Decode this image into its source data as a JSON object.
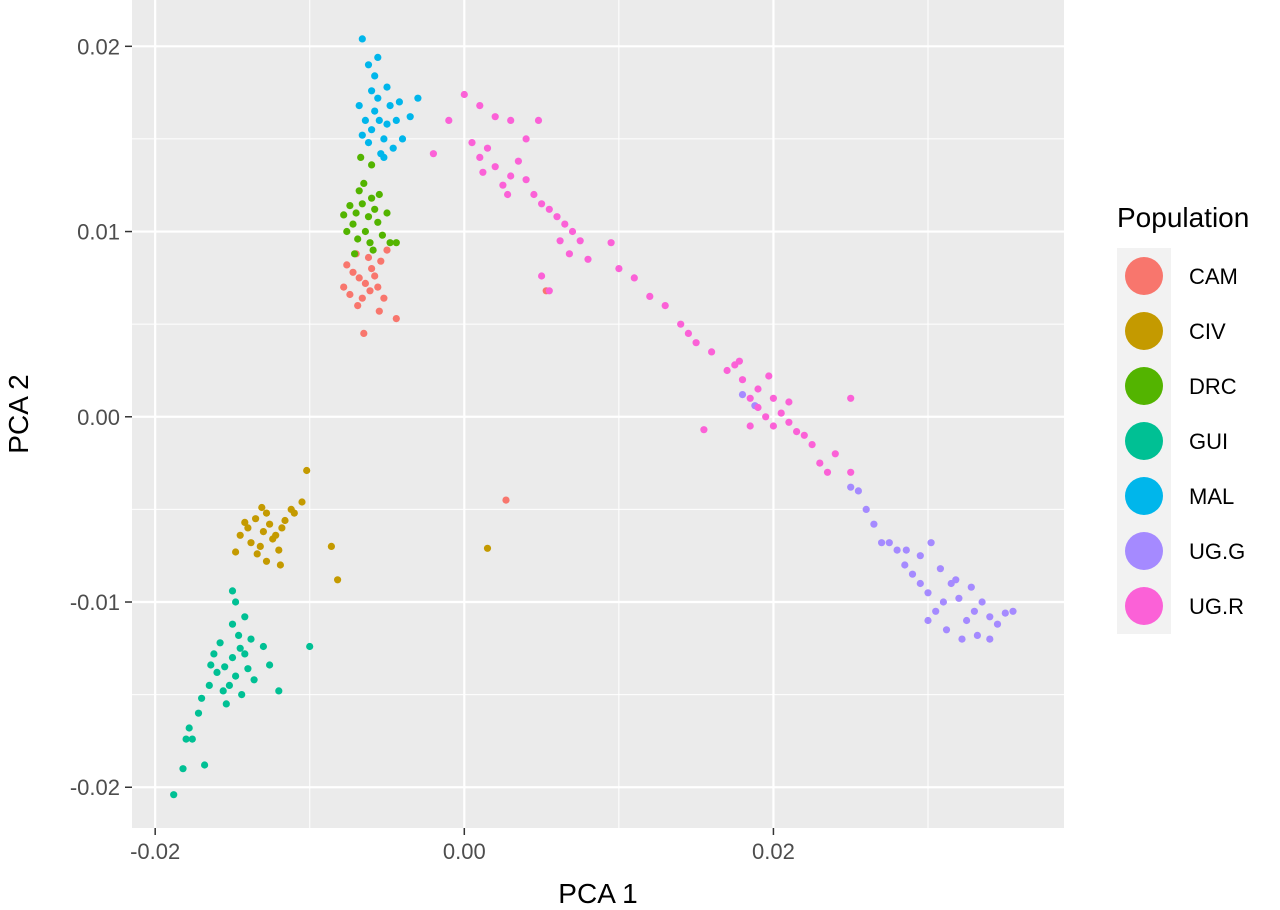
{
  "chart_data": {
    "type": "scatter",
    "xlabel": "PCA 1",
    "ylabel": "PCA 2",
    "xlim": [
      -0.0215,
      0.0388
    ],
    "ylim": [
      -0.0222,
      0.0225
    ],
    "x_ticks": [
      -0.02,
      0.0,
      0.02
    ],
    "x_tick_labels": [
      "-0.02",
      "0.00",
      "0.02"
    ],
    "y_ticks": [
      -0.02,
      -0.01,
      0.0,
      0.01,
      0.02
    ],
    "y_tick_labels": [
      "-0.02",
      "-0.01",
      "0.00",
      "0.01",
      "0.02"
    ],
    "grid": true,
    "panel_background": "#EBEBEB",
    "legend": {
      "title": "Population",
      "position": "right"
    },
    "series": [
      {
        "name": "CAM",
        "color": "#F8766D",
        "points": [
          [
            -0.0076,
            0.0082
          ],
          [
            -0.0072,
            0.0078
          ],
          [
            -0.0068,
            0.0075
          ],
          [
            -0.0064,
            0.0072
          ],
          [
            -0.006,
            0.008
          ],
          [
            -0.0056,
            0.007
          ],
          [
            -0.0074,
            0.0066
          ],
          [
            -0.0066,
            0.0064
          ],
          [
            -0.0058,
            0.0076
          ],
          [
            -0.0054,
            0.0084
          ],
          [
            -0.007,
            0.0088
          ],
          [
            -0.0062,
            0.0086
          ],
          [
            -0.0052,
            0.0064
          ],
          [
            -0.0065,
            0.0045
          ],
          [
            -0.0055,
            0.0057
          ],
          [
            -0.0044,
            0.0053
          ],
          [
            -0.0078,
            0.007
          ],
          [
            -0.005,
            0.009
          ],
          [
            -0.0061,
            0.0068
          ],
          [
            -0.0069,
            0.006
          ],
          [
            0.0053,
            0.0068
          ],
          [
            0.0027,
            -0.0045
          ]
        ]
      },
      {
        "name": "CIV",
        "color": "#C49A00",
        "points": [
          [
            -0.014,
            -0.006
          ],
          [
            -0.0135,
            -0.0055
          ],
          [
            -0.013,
            -0.0062
          ],
          [
            -0.0126,
            -0.0058
          ],
          [
            -0.0122,
            -0.0064
          ],
          [
            -0.0138,
            -0.0068
          ],
          [
            -0.0132,
            -0.007
          ],
          [
            -0.0128,
            -0.0052
          ],
          [
            -0.0124,
            -0.0066
          ],
          [
            -0.0118,
            -0.006
          ],
          [
            -0.0145,
            -0.0064
          ],
          [
            -0.0134,
            -0.0074
          ],
          [
            -0.012,
            -0.0072
          ],
          [
            -0.0116,
            -0.0056
          ],
          [
            -0.0142,
            -0.0057
          ],
          [
            -0.0128,
            -0.0078
          ],
          [
            -0.0112,
            -0.005
          ],
          [
            -0.0105,
            -0.0046
          ],
          [
            -0.0102,
            -0.0029
          ],
          [
            -0.011,
            -0.0052
          ],
          [
            -0.0086,
            -0.007
          ],
          [
            -0.0082,
            -0.0088
          ],
          [
            -0.0148,
            -0.0073
          ],
          [
            -0.0119,
            -0.008
          ],
          [
            -0.0131,
            -0.0049
          ],
          [
            0.0015,
            -0.0071
          ]
        ]
      },
      {
        "name": "DRC",
        "color": "#53B400",
        "points": [
          [
            -0.007,
            0.011
          ],
          [
            -0.0066,
            0.0115
          ],
          [
            -0.0062,
            0.0108
          ],
          [
            -0.0058,
            0.0112
          ],
          [
            -0.0072,
            0.0104
          ],
          [
            -0.0064,
            0.01
          ],
          [
            -0.006,
            0.0118
          ],
          [
            -0.0056,
            0.0105
          ],
          [
            -0.0068,
            0.0122
          ],
          [
            -0.0074,
            0.0114
          ],
          [
            -0.0053,
            0.0098
          ],
          [
            -0.0061,
            0.0094
          ],
          [
            -0.0069,
            0.0096
          ],
          [
            -0.0076,
            0.01
          ],
          [
            -0.005,
            0.011
          ],
          [
            -0.0065,
            0.0126
          ],
          [
            -0.0059,
            0.009
          ],
          [
            -0.0071,
            0.0088
          ],
          [
            -0.0048,
            0.0094
          ],
          [
            -0.0078,
            0.0109
          ],
          [
            -0.0055,
            0.012
          ],
          [
            -0.0067,
            0.014
          ],
          [
            -0.006,
            0.0136
          ],
          [
            -0.0044,
            0.0094
          ]
        ]
      },
      {
        "name": "GUI",
        "color": "#00C094",
        "points": [
          [
            -0.015,
            -0.013
          ],
          [
            -0.0145,
            -0.0125
          ],
          [
            -0.0155,
            -0.0135
          ],
          [
            -0.0148,
            -0.014
          ],
          [
            -0.0142,
            -0.0128
          ],
          [
            -0.0158,
            -0.0122
          ],
          [
            -0.0152,
            -0.0145
          ],
          [
            -0.0146,
            -0.0118
          ],
          [
            -0.014,
            -0.0136
          ],
          [
            -0.016,
            -0.0138
          ],
          [
            -0.0156,
            -0.0148
          ],
          [
            -0.0144,
            -0.015
          ],
          [
            -0.0138,
            -0.012
          ],
          [
            -0.0162,
            -0.0128
          ],
          [
            -0.015,
            -0.0112
          ],
          [
            -0.0136,
            -0.0142
          ],
          [
            -0.0165,
            -0.0145
          ],
          [
            -0.017,
            -0.0152
          ],
          [
            -0.0172,
            -0.016
          ],
          [
            -0.0178,
            -0.0168
          ],
          [
            -0.0176,
            -0.0174
          ],
          [
            -0.0182,
            -0.019
          ],
          [
            -0.0188,
            -0.0204
          ],
          [
            -0.018,
            -0.0174
          ],
          [
            -0.0168,
            -0.0188
          ],
          [
            -0.013,
            -0.0124
          ],
          [
            -0.0126,
            -0.0134
          ],
          [
            -0.01,
            -0.0124
          ],
          [
            -0.012,
            -0.0148
          ],
          [
            -0.0148,
            -0.01
          ],
          [
            -0.015,
            -0.0094
          ],
          [
            -0.0142,
            -0.0108
          ],
          [
            -0.0154,
            -0.0155
          ],
          [
            -0.0164,
            -0.0134
          ]
        ]
      },
      {
        "name": "MAL",
        "color": "#00B6EB",
        "points": [
          [
            -0.006,
            0.0155
          ],
          [
            -0.0055,
            0.016
          ],
          [
            -0.005,
            0.0158
          ],
          [
            -0.0058,
            0.0165
          ],
          [
            -0.0052,
            0.015
          ],
          [
            -0.0062,
            0.0148
          ],
          [
            -0.0048,
            0.0168
          ],
          [
            -0.0056,
            0.0172
          ],
          [
            -0.0064,
            0.016
          ],
          [
            -0.0046,
            0.0145
          ],
          [
            -0.0054,
            0.0142
          ],
          [
            -0.006,
            0.0176
          ],
          [
            -0.0066,
            0.0152
          ],
          [
            -0.0044,
            0.016
          ],
          [
            -0.005,
            0.0178
          ],
          [
            -0.0058,
            0.0184
          ],
          [
            -0.0062,
            0.019
          ],
          [
            -0.0056,
            0.0194
          ],
          [
            -0.0066,
            0.0204
          ],
          [
            -0.0042,
            0.017
          ],
          [
            -0.004,
            0.015
          ],
          [
            -0.0068,
            0.0168
          ],
          [
            -0.0052,
            0.014
          ],
          [
            -0.003,
            0.0172
          ],
          [
            -0.0035,
            0.0162
          ]
        ]
      },
      {
        "name": "UG.G",
        "color": "#A58AFF",
        "points": [
          [
            0.03,
            -0.0095
          ],
          [
            0.031,
            -0.01
          ],
          [
            0.032,
            -0.0098
          ],
          [
            0.033,
            -0.0105
          ],
          [
            0.0315,
            -0.009
          ],
          [
            0.0325,
            -0.011
          ],
          [
            0.0305,
            -0.0105
          ],
          [
            0.0335,
            -0.01
          ],
          [
            0.034,
            -0.0108
          ],
          [
            0.0295,
            -0.009
          ],
          [
            0.029,
            -0.0085
          ],
          [
            0.0285,
            -0.008
          ],
          [
            0.028,
            -0.0072
          ],
          [
            0.0275,
            -0.0068
          ],
          [
            0.027,
            -0.0068
          ],
          [
            0.0345,
            -0.0112
          ],
          [
            0.035,
            -0.0106
          ],
          [
            0.0355,
            -0.0105
          ],
          [
            0.0312,
            -0.0115
          ],
          [
            0.0322,
            -0.012
          ],
          [
            0.0332,
            -0.0118
          ],
          [
            0.03,
            -0.011
          ],
          [
            0.0318,
            -0.0088
          ],
          [
            0.0308,
            -0.0082
          ],
          [
            0.026,
            -0.005
          ],
          [
            0.0255,
            -0.004
          ],
          [
            0.025,
            -0.0038
          ],
          [
            0.0295,
            -0.0075
          ],
          [
            0.0302,
            -0.0068
          ],
          [
            0.0286,
            -0.0072
          ],
          [
            0.034,
            -0.012
          ],
          [
            0.0328,
            -0.0092
          ],
          [
            0.0265,
            -0.0058
          ],
          [
            0.018,
            0.0012
          ],
          [
            0.0188,
            0.0006
          ]
        ]
      },
      {
        "name": "UG.R",
        "color": "#FB61D7",
        "points": [
          [
            0.001,
            0.014
          ],
          [
            0.002,
            0.0135
          ],
          [
            0.003,
            0.013
          ],
          [
            0.0015,
            0.0145
          ],
          [
            0.0025,
            0.0125
          ],
          [
            0.0035,
            0.0138
          ],
          [
            0.0005,
            0.0148
          ],
          [
            0.004,
            0.0128
          ],
          [
            0.0028,
            0.012
          ],
          [
            0.0012,
            0.0132
          ],
          [
            0.0045,
            0.012
          ],
          [
            0.005,
            0.0115
          ],
          [
            0.0055,
            0.0112
          ],
          [
            0.006,
            0.0108
          ],
          [
            0.0065,
            0.0104
          ],
          [
            0.007,
            0.01
          ],
          [
            0.0062,
            0.0095
          ],
          [
            0.0068,
            0.0088
          ],
          [
            0.0075,
            0.0095
          ],
          [
            -0.001,
            0.016
          ],
          [
            0.0,
            0.0174
          ],
          [
            0.001,
            0.0168
          ],
          [
            0.002,
            0.0162
          ],
          [
            0.003,
            0.016
          ],
          [
            0.004,
            0.015
          ],
          [
            -0.002,
            0.0142
          ],
          [
            0.0055,
            0.0068
          ],
          [
            0.0048,
            0.016
          ],
          [
            0.005,
            0.0076
          ],
          [
            0.008,
            0.0085
          ],
          [
            0.0095,
            0.0094
          ],
          [
            0.01,
            0.008
          ],
          [
            0.011,
            0.0075
          ],
          [
            0.012,
            0.0065
          ],
          [
            0.013,
            0.006
          ],
          [
            0.014,
            0.005
          ],
          [
            0.0145,
            0.0045
          ],
          [
            0.015,
            0.004
          ],
          [
            0.016,
            0.0035
          ],
          [
            0.017,
            0.0025
          ],
          [
            0.0175,
            0.0028
          ],
          [
            0.018,
            0.002
          ],
          [
            0.0185,
            0.001
          ],
          [
            0.019,
            0.0005
          ],
          [
            0.0195,
            0.0
          ],
          [
            0.02,
            -0.0005
          ],
          [
            0.0205,
            0.0002
          ],
          [
            0.021,
            -0.0003
          ],
          [
            0.0215,
            -0.0008
          ],
          [
            0.022,
            -0.001
          ],
          [
            0.02,
            0.001
          ],
          [
            0.019,
            0.0015
          ],
          [
            0.021,
            0.0008
          ],
          [
            0.0225,
            -0.0015
          ],
          [
            0.023,
            -0.0025
          ],
          [
            0.0235,
            -0.003
          ],
          [
            0.024,
            -0.002
          ],
          [
            0.025,
            -0.003
          ],
          [
            0.0155,
            -0.0007
          ],
          [
            0.025,
            0.001
          ],
          [
            0.0178,
            0.003
          ],
          [
            0.0185,
            -0.0005
          ],
          [
            0.0197,
            0.0022
          ]
        ]
      }
    ]
  }
}
